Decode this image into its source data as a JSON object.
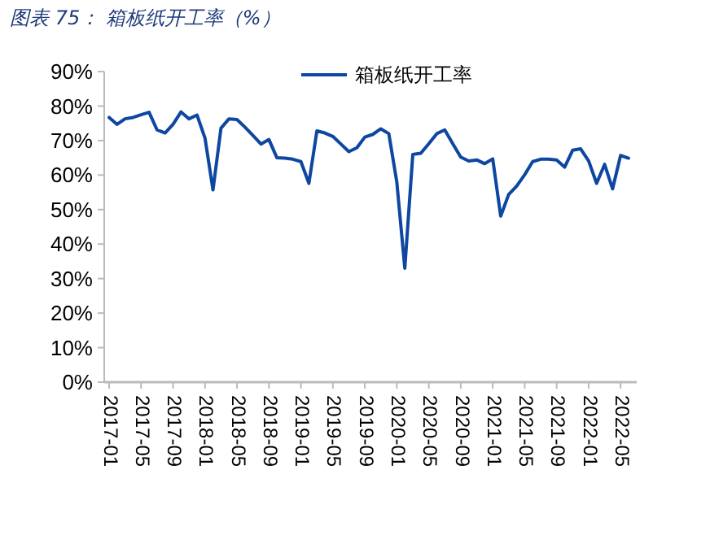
{
  "chart_data": {
    "type": "line",
    "title": "图表 75： 箱板纸开工率（%）",
    "categories": [
      "2017-01",
      null,
      null,
      null,
      "2017-05",
      null,
      null,
      null,
      "2017-09",
      null,
      null,
      null,
      "2018-01",
      null,
      null,
      null,
      "2018-05",
      null,
      null,
      null,
      "2018-09",
      null,
      null,
      null,
      "2019-01",
      null,
      null,
      null,
      "2019-05",
      null,
      null,
      null,
      "2019-09",
      null,
      null,
      null,
      "2020-01",
      null,
      null,
      null,
      "2020-05",
      null,
      null,
      null,
      "2020-09",
      null,
      null,
      null,
      "2021-01",
      null,
      null,
      null,
      "2021-05",
      null,
      null,
      null,
      "2021-09",
      null,
      null,
      null,
      "2022-01",
      null,
      null,
      null,
      "2022-05",
      null
    ],
    "series": [
      {
        "name": "箱板纸开工率",
        "color": "#0e47a1",
        "values": [
          76.7,
          74.7,
          76.3,
          76.7,
          77.5,
          78.2,
          73.1,
          72.2,
          74.7,
          78.3,
          76.3,
          77.4,
          70.7,
          55.7,
          73.6,
          76.3,
          76.1,
          73.9,
          71.5,
          69,
          70.3,
          65,
          64.9,
          64.6,
          63.9,
          57.6,
          72.8,
          72.2,
          71.2,
          69,
          66.8,
          67.9,
          71,
          71.8,
          73.4,
          72,
          58,
          33,
          66,
          66.3,
          69.1,
          72,
          73.1,
          69.1,
          65.2,
          64.1,
          64.4,
          63.3,
          64.7,
          48.1,
          54.4,
          56.8,
          60.1,
          63.9,
          64.6,
          64.6,
          64.4,
          62.3,
          67.2,
          67.6,
          64.1,
          57.6,
          63.1,
          56,
          65.7,
          64.9
        ]
      }
    ],
    "ylim": [
      0,
      90
    ],
    "yticks": [
      {
        "value": 0,
        "label": "0%"
      },
      {
        "value": 10,
        "label": "10%"
      },
      {
        "value": 20,
        "label": "20%"
      },
      {
        "value": 30,
        "label": "30%"
      },
      {
        "value": 40,
        "label": "40%"
      },
      {
        "value": 50,
        "label": "50%"
      },
      {
        "value": 60,
        "label": "60%"
      },
      {
        "value": 70,
        "label": "70%"
      },
      {
        "value": 80,
        "label": "80%"
      },
      {
        "value": 90,
        "label": "90%"
      }
    ],
    "legend": "top",
    "grid": false
  }
}
